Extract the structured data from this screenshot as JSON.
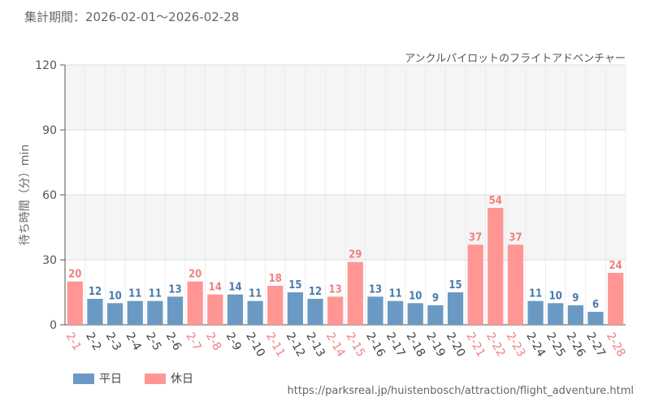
{
  "header": {
    "period": "集計期間：2026-02-01～2026-02-28",
    "subtitle": "アンクルパイロットのフライトアドベンチャー",
    "source": "https://parksreal.jp/huistenbosch/attraction/flight_adventure.html"
  },
  "chart_data": {
    "type": "bar",
    "title": "",
    "subtitle": "アンクルパイロットのフライトアドベンチャー",
    "xlabel": "",
    "ylabel": "待ち時間（分）min",
    "ylim": [
      0,
      120
    ],
    "yticks": [
      0,
      30,
      60,
      90,
      120
    ],
    "grid": true,
    "legend_position": "bottom-left",
    "categories": [
      "2-1",
      "2-2",
      "2-3",
      "2-4",
      "2-5",
      "2-6",
      "2-7",
      "2-8",
      "2-9",
      "2-10",
      "2-11",
      "2-12",
      "2-13",
      "2-14",
      "2-15",
      "2-16",
      "2-17",
      "2-18",
      "2-19",
      "2-20",
      "2-21",
      "2-22",
      "2-23",
      "2-24",
      "2-25",
      "2-26",
      "2-27",
      "2-28"
    ],
    "values": [
      20,
      12,
      10,
      11,
      11,
      13,
      20,
      14,
      14,
      11,
      18,
      15,
      12,
      13,
      29,
      13,
      11,
      10,
      9,
      15,
      37,
      54,
      37,
      11,
      10,
      9,
      6,
      24
    ],
    "day_type": [
      "holiday",
      "weekday",
      "weekday",
      "weekday",
      "weekday",
      "weekday",
      "holiday",
      "holiday",
      "weekday",
      "weekday",
      "holiday",
      "weekday",
      "weekday",
      "holiday",
      "holiday",
      "weekday",
      "weekday",
      "weekday",
      "weekday",
      "weekday",
      "holiday",
      "holiday",
      "holiday",
      "weekday",
      "weekday",
      "weekday",
      "weekday",
      "holiday"
    ],
    "legend": [
      {
        "key": "weekday",
        "label": "平日",
        "color": "#6a9ac4"
      },
      {
        "key": "holiday",
        "label": "休日",
        "color": "#ff9694"
      }
    ],
    "colors": {
      "weekday_bar": "#6a9ac4",
      "holiday_bar": "#ff9694",
      "weekday_text": "#4a7aaa",
      "holiday_text": "#f08080",
      "weekday_tick": "#444444",
      "holiday_tick": "#f08080"
    }
  }
}
